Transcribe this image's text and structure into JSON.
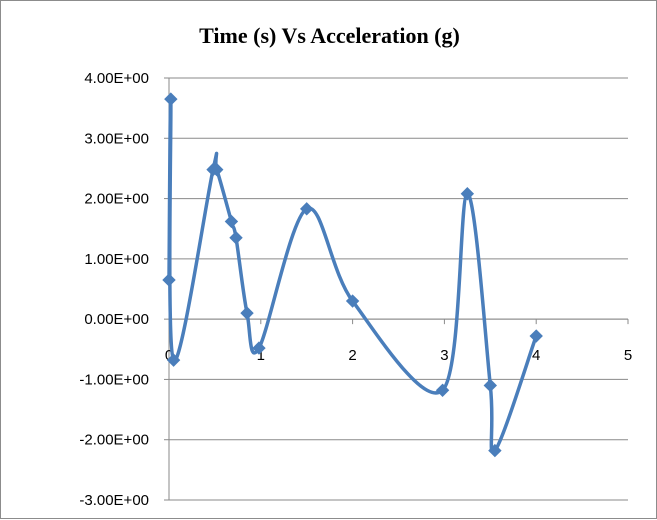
{
  "chart_data": {
    "type": "scatter",
    "title": "Time (s) Vs Acceleration (g)",
    "xlabel": "",
    "ylabel": "",
    "xlim": [
      0,
      5
    ],
    "ylim": [
      -3,
      4
    ],
    "x_ticks": [
      "0",
      "1",
      "2",
      "3",
      "4",
      "5"
    ],
    "y_ticks": [
      "4.00E+00",
      "3.00E+00",
      "2.00E+00",
      "1.00E+00",
      "0.00E+00",
      "-1.00E+00",
      "-2.00E+00",
      "-3.00E+00"
    ],
    "grid": "horizontal",
    "legend": "none",
    "smoothed_line": true,
    "series_color": "#4a7ebb",
    "series": [
      {
        "x": [
          0.0,
          0.02,
          0.05,
          0.48,
          0.52,
          0.68,
          0.73,
          0.85,
          0.98,
          1.5,
          2.0,
          2.98,
          3.25,
          3.5,
          3.55,
          4.0
        ],
        "y": [
          0.65,
          3.65,
          -0.68,
          2.48,
          2.48,
          1.62,
          1.35,
          0.1,
          -0.48,
          1.83,
          0.3,
          -1.18,
          2.08,
          -1.1,
          -2.18,
          -0.28
        ]
      }
    ]
  }
}
